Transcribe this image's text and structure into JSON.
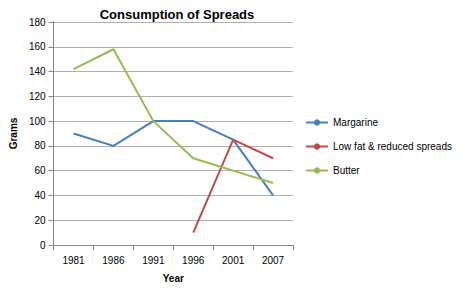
{
  "chart_data": {
    "type": "line",
    "title": "Consumption of Spreads",
    "x_label": "Year",
    "y_label": "Grams",
    "categories": [
      "1981",
      "1986",
      "1991",
      "1996",
      "2001",
      "2007"
    ],
    "series": [
      {
        "name": "Margarine",
        "color": "#4a7ebb",
        "values": [
          90,
          80,
          100,
          100,
          85,
          40
        ]
      },
      {
        "name": "Low fat & reduced spreads",
        "color": "#be4b48",
        "values": [
          null,
          null,
          null,
          10,
          85,
          70
        ]
      },
      {
        "name": "Butter",
        "color": "#98b954",
        "values": [
          142,
          158,
          100,
          70,
          60,
          50
        ]
      }
    ],
    "ylim": [
      0,
      180
    ],
    "yticks": [
      0,
      20,
      40,
      60,
      80,
      100,
      120,
      140,
      160,
      180
    ],
    "grid": true,
    "legend": "right",
    "marker": "none"
  }
}
